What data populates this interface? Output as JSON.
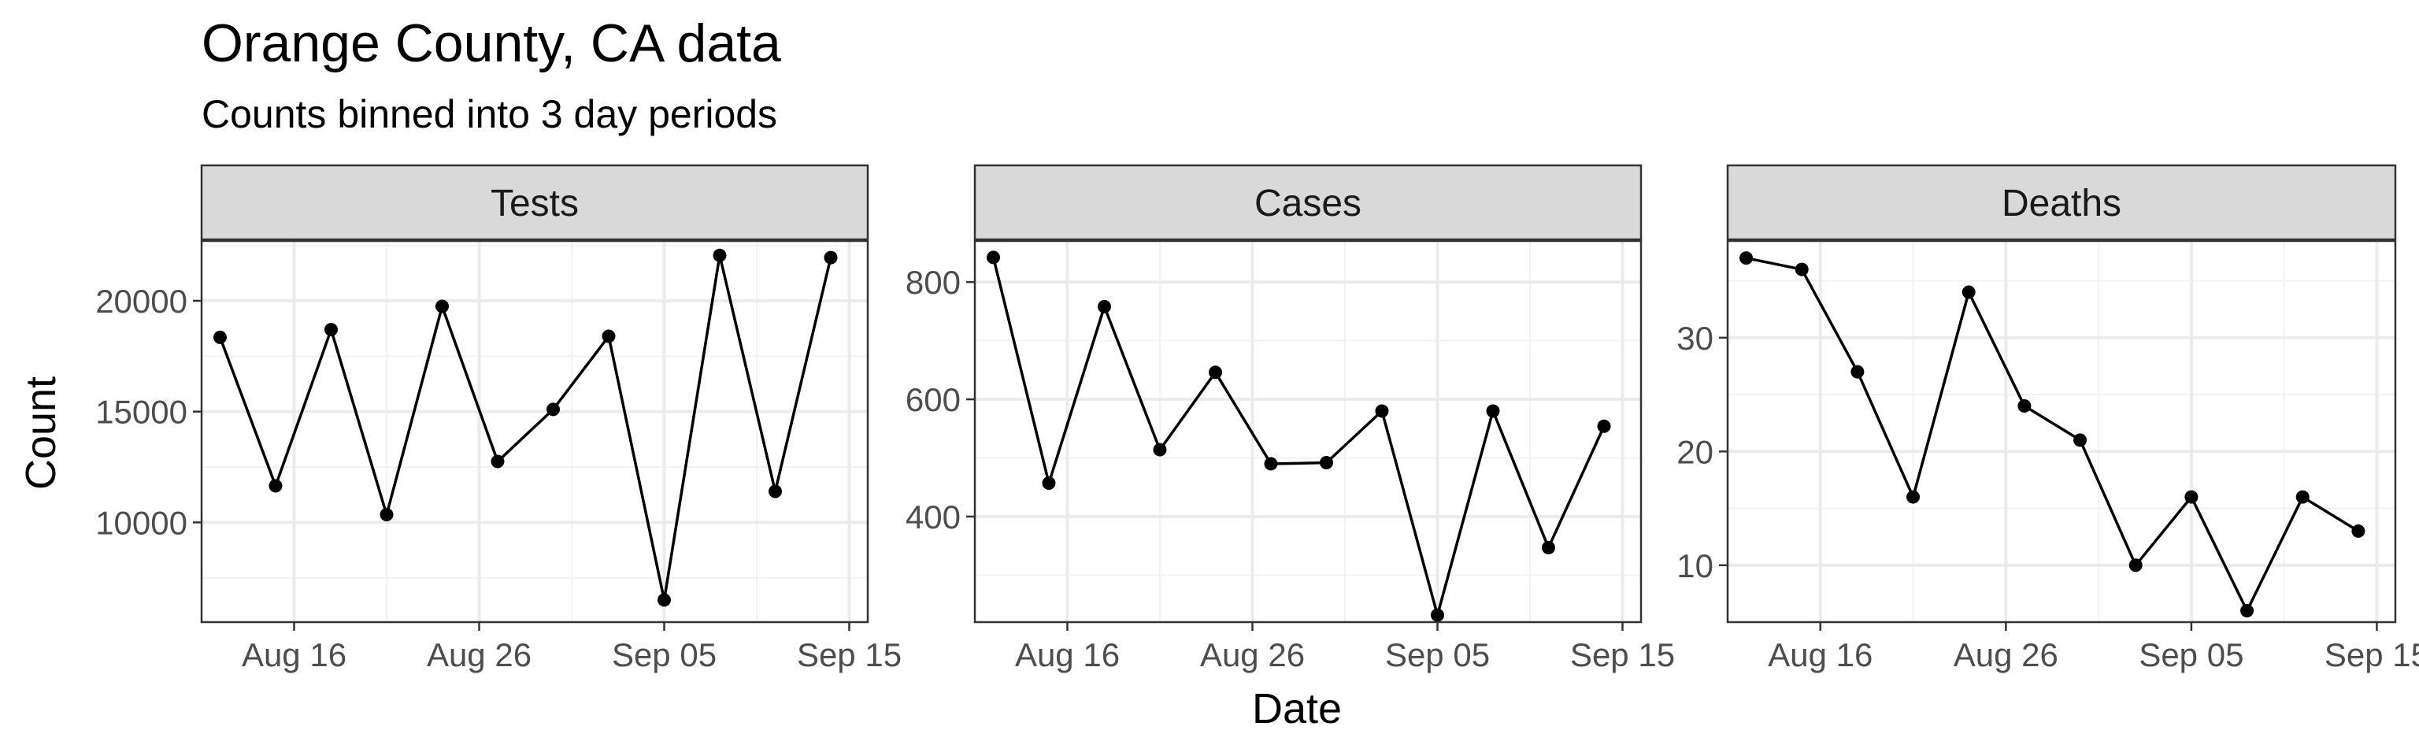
{
  "chart_data": {
    "type": "line",
    "title": "Orange County, CA data",
    "subtitle": "Counts binned into 3 day periods",
    "xlabel": "Date",
    "ylabel": "Count",
    "x_ticks": [
      "Aug 16",
      "Aug 26",
      "Sep 05",
      "Sep 15"
    ],
    "x_tick_dates": [
      "2020-08-16",
      "2020-08-26",
      "2020-09-05",
      "2020-09-15"
    ],
    "x_range": [
      "2020-08-11",
      "2020-09-16"
    ],
    "x": [
      "2020-08-12",
      "2020-08-15",
      "2020-08-18",
      "2020-08-21",
      "2020-08-24",
      "2020-08-27",
      "2020-08-30",
      "2020-09-02",
      "2020-09-05",
      "2020-09-08",
      "2020-09-11",
      "2020-09-14"
    ],
    "grid": true,
    "panels": [
      {
        "strip": "Tests",
        "ylim": [
          5500,
          22700
        ],
        "y_ticks": [
          10000,
          15000,
          20000
        ],
        "y_tick_labels": [
          "10000",
          "15000",
          "20000"
        ],
        "values": [
          18350,
          11650,
          18700,
          10350,
          19750,
          12750,
          15100,
          18400,
          6500,
          22050,
          11400,
          21950
        ]
      },
      {
        "strip": "Cases",
        "ylim": [
          220,
          870
        ],
        "y_ticks": [
          400,
          600,
          800
        ],
        "y_tick_labels": [
          "400",
          "600",
          "800"
        ],
        "values": [
          842,
          457,
          758,
          514,
          646,
          490,
          492,
          580,
          232,
          580,
          347,
          554
        ]
      },
      {
        "strip": "Deaths",
        "ylim": [
          5,
          38.5
        ],
        "y_ticks": [
          10,
          20,
          30
        ],
        "y_tick_labels": [
          "10",
          "20",
          "30"
        ],
        "values": [
          37,
          36,
          27,
          16,
          34,
          24,
          21,
          10,
          16,
          6,
          16,
          13
        ]
      }
    ]
  }
}
